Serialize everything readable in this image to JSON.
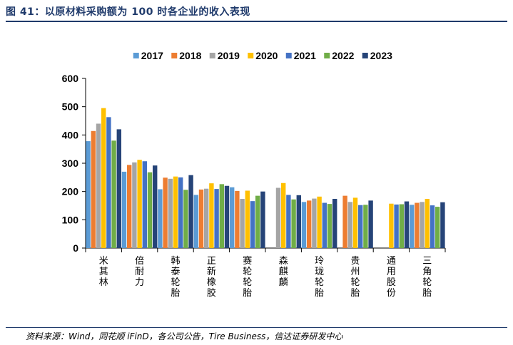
{
  "header": {
    "title": "图 41：以原材料采购额为 100 时各企业的收入表现"
  },
  "footer": {
    "source": "资料来源：Wind，同花顺 iFinD，各公司公告，Tire Business，信达证券研发中心"
  },
  "chart_data": {
    "type": "bar",
    "title": "",
    "xlabel": "",
    "ylabel": "",
    "ylim": [
      0,
      600
    ],
    "yticks": [
      0,
      100,
      200,
      300,
      400,
      500,
      600
    ],
    "grid": false,
    "legend_position": "top",
    "categories": [
      "米其林",
      "倍耐力",
      "韩泰轮胎",
      "正新橡胶",
      "赛轮轮胎",
      "森麒麟",
      "玲珑轮胎",
      "贵州轮胎",
      "通用股份",
      "三角轮胎"
    ],
    "series": [
      {
        "name": "2017",
        "color": "#5b9bd5",
        "values": [
          378,
          270,
          208,
          188,
          215,
          null,
          163,
          null,
          null,
          153
        ]
      },
      {
        "name": "2018",
        "color": "#ed7d31",
        "values": [
          414,
          294,
          249,
          207,
          202,
          null,
          168,
          185,
          null,
          160
        ]
      },
      {
        "name": "2019",
        "color": "#a5a5a5",
        "values": [
          440,
          303,
          245,
          210,
          174,
          213,
          175,
          163,
          null,
          163
        ]
      },
      {
        "name": "2020",
        "color": "#ffc000",
        "values": [
          495,
          312,
          253,
          229,
          203,
          230,
          182,
          178,
          157,
          174
        ]
      },
      {
        "name": "2021",
        "color": "#4472c4",
        "values": [
          463,
          307,
          250,
          209,
          166,
          188,
          160,
          152,
          154,
          151
        ]
      },
      {
        "name": "2022",
        "color": "#70ad47",
        "values": [
          380,
          268,
          206,
          226,
          185,
          172,
          156,
          153,
          155,
          146
        ]
      },
      {
        "name": "2023",
        "color": "#264478",
        "values": [
          420,
          292,
          258,
          220,
          200,
          187,
          174,
          168,
          165,
          162
        ]
      }
    ]
  }
}
